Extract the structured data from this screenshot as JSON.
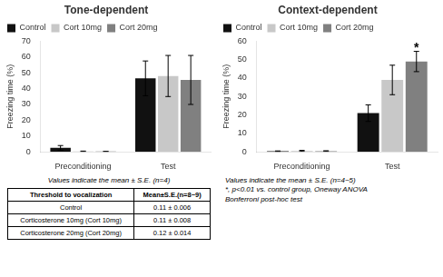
{
  "chart_data": [
    {
      "type": "bar",
      "title": "Tone-dependent",
      "y_label": "Freezing time (%)",
      "categories": [
        "Preconditioning",
        "Test"
      ],
      "series": [
        {
          "name": "Control",
          "color": "#111111",
          "values": [
            2.5,
            46.5
          ],
          "errors": [
            1.5,
            11.0
          ]
        },
        {
          "name": "Cort 10mg",
          "color": "#c8c8c8",
          "values": [
            0.3,
            48.0
          ],
          "errors": [
            0.2,
            13.0
          ]
        },
        {
          "name": "Cort 20mg",
          "color": "#808080",
          "values": [
            0.2,
            45.5
          ],
          "errors": [
            0.1,
            15.5
          ]
        }
      ],
      "ylim": [
        0,
        70
      ],
      "yticks": [
        0,
        10,
        20,
        30,
        40,
        50,
        60,
        70
      ],
      "grid": false,
      "legend": "upper left",
      "note": "Values indicate the mean ± S.E. (n=4)"
    },
    {
      "type": "bar",
      "title": "Context-dependent",
      "y_label": "Freezing time (%)",
      "categories": [
        "Preconditioning",
        "Test"
      ],
      "series": [
        {
          "name": "Control",
          "color": "#111111",
          "values": [
            0.3,
            21.0
          ],
          "errors": [
            0.2,
            4.5
          ]
        },
        {
          "name": "Cort 10mg",
          "color": "#c8c8c8",
          "values": [
            0.5,
            39.0
          ],
          "errors": [
            0.3,
            8.0
          ]
        },
        {
          "name": "Cort 20mg",
          "color": "#808080",
          "values": [
            0.4,
            49.0
          ],
          "errors": [
            0.2,
            5.5
          ]
        }
      ],
      "ylim": [
        0,
        60
      ],
      "yticks": [
        0,
        10,
        20,
        30,
        40,
        50,
        60
      ],
      "grid": false,
      "legend": "upper left",
      "annotations": [
        {
          "text": "*",
          "category": "Test",
          "series": "Cort 20mg"
        }
      ],
      "note": "Values indicate the mean ± S.E. (n=4~5)\n*, p<0.01 vs. control group, Oneway ANOVA\nBonferroni post-hoc test"
    }
  ],
  "table": {
    "header": [
      "Threshold to vocalization",
      "Mean±S.E.(n=8~9)"
    ],
    "rows": [
      [
        "Control",
        "0.11 ± 0.006"
      ],
      [
        "Corticosterone 10mg (Cort 10mg)",
        "0.11 ± 0.008"
      ],
      [
        "Corticosterone 20mg (Cort 20mg)",
        "0.12 ± 0.014"
      ]
    ]
  }
}
